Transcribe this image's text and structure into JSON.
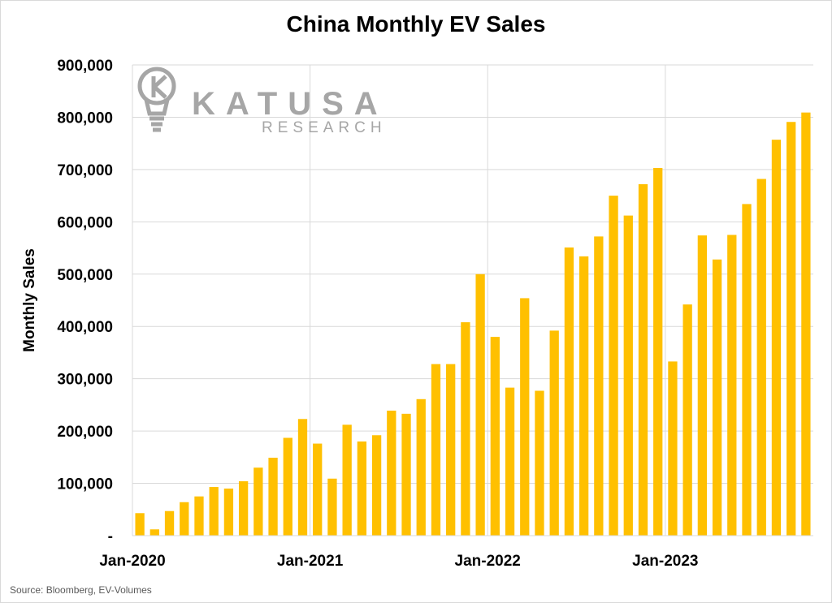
{
  "chart_data": {
    "type": "bar",
    "title": "China Monthly EV Sales",
    "ylabel": "Monthly Sales",
    "xlabel": "",
    "ylim": [
      0,
      900000
    ],
    "yticks": [
      0,
      100000,
      200000,
      300000,
      400000,
      500000,
      600000,
      700000,
      800000,
      900000
    ],
    "ytick_labels": [
      "-",
      "100,000",
      "200,000",
      "300,000",
      "400,000",
      "500,000",
      "600,000",
      "700,000",
      "800,000",
      "900,000"
    ],
    "xtick_labels": [
      {
        "label": "Jan-2020",
        "index": 0
      },
      {
        "label": "Jan-2021",
        "index": 12
      },
      {
        "label": "Jan-2022",
        "index": 24
      },
      {
        "label": "Jan-2023",
        "index": 36
      }
    ],
    "grid": true,
    "bar_color": "#FFC000",
    "values": [
      43000,
      12000,
      47000,
      64000,
      75000,
      93000,
      90000,
      104000,
      130000,
      149000,
      187000,
      223000,
      176000,
      109000,
      212000,
      180000,
      192000,
      239000,
      233000,
      261000,
      328000,
      328000,
      408000,
      500000,
      380000,
      283000,
      454000,
      277000,
      392000,
      551000,
      534000,
      572000,
      650000,
      612000,
      672000,
      703000,
      333000,
      442000,
      574000,
      528000,
      575000,
      634000,
      682000,
      757000,
      791000,
      809000
    ]
  },
  "watermark": {
    "name": "KATUSA",
    "sub": "RESEARCH",
    "icon": "lightbulb-k-icon",
    "color": "#A6A6A6"
  },
  "source": "Source: Bloomberg, EV-Volumes",
  "colors": {
    "bars": "#FFC000",
    "grid": "#D9D9D9",
    "text": "#000000"
  }
}
